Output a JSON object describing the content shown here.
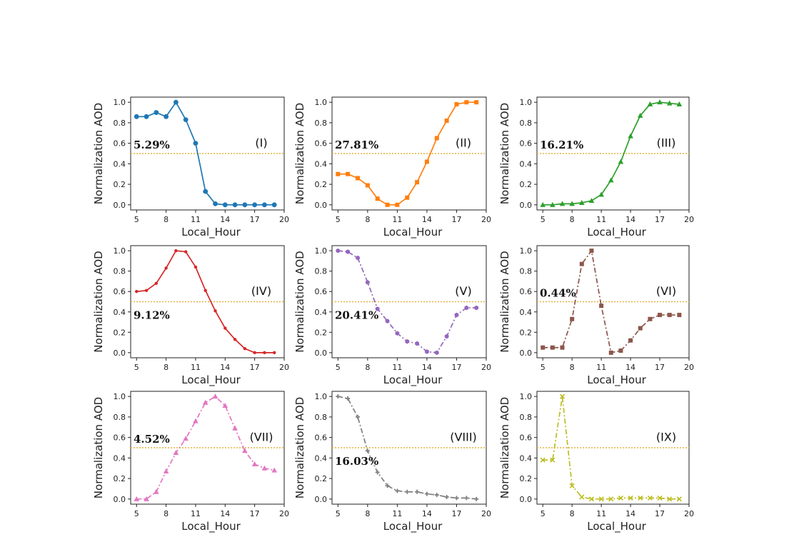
{
  "chart_data": [
    {
      "type": "line",
      "panel_label": "(I)",
      "percentage": "5.29%",
      "xlabel": "Local_Hour",
      "ylabel": "Normalization AOD",
      "x": [
        5,
        6,
        7,
        8,
        9,
        10,
        11,
        12,
        13,
        14,
        15,
        16,
        17,
        18,
        19
      ],
      "values": [
        0.86,
        0.86,
        0.9,
        0.86,
        1.0,
        0.83,
        0.6,
        0.13,
        0.01,
        0.0,
        0.0,
        0.0,
        0.0,
        0.0,
        0.0
      ],
      "color": "#1f77b4",
      "marker": "circle",
      "dash": "solid",
      "pct_pos": "upper-left"
    },
    {
      "type": "line",
      "panel_label": "(II)",
      "percentage": "27.81%",
      "xlabel": "Local_Hour",
      "ylabel": "Normalization AOD",
      "x": [
        5,
        6,
        7,
        8,
        9,
        10,
        11,
        12,
        13,
        14,
        15,
        16,
        17,
        18,
        19
      ],
      "values": [
        0.3,
        0.3,
        0.26,
        0.19,
        0.06,
        0.0,
        0.0,
        0.07,
        0.22,
        0.42,
        0.65,
        0.82,
        0.98,
        1.0,
        1.0
      ],
      "color": "#ff7f0e",
      "marker": "square",
      "dash": "solid",
      "pct_pos": "upper-left"
    },
    {
      "type": "line",
      "panel_label": "(III)",
      "percentage": "16.21%",
      "xlabel": "Local_Hour",
      "ylabel": "Normalization AOD",
      "x": [
        5,
        6,
        7,
        8,
        9,
        10,
        11,
        12,
        13,
        14,
        15,
        16,
        17,
        18,
        19
      ],
      "values": [
        0.0,
        0.0,
        0.01,
        0.01,
        0.02,
        0.04,
        0.1,
        0.24,
        0.42,
        0.67,
        0.87,
        0.98,
        1.0,
        0.99,
        0.98
      ],
      "color": "#2ca02c",
      "marker": "triangle",
      "dash": "solid",
      "pct_pos": "upper-left"
    },
    {
      "type": "line",
      "panel_label": "(IV)",
      "percentage": "9.12%",
      "xlabel": "Local_Hour",
      "ylabel": "Normalization AOD",
      "x": [
        5,
        6,
        7,
        8,
        9,
        10,
        11,
        12,
        13,
        14,
        15,
        16,
        17,
        18,
        19
      ],
      "values": [
        0.6,
        0.61,
        0.68,
        0.83,
        1.0,
        0.99,
        0.84,
        0.61,
        0.41,
        0.24,
        0.13,
        0.04,
        0.0,
        0.0,
        0.0
      ],
      "color": "#d62728",
      "marker": "dot",
      "dash": "solid",
      "pct_pos": "lower-left"
    },
    {
      "type": "line",
      "panel_label": "(V)",
      "percentage": "20.41%",
      "xlabel": "Local_Hour",
      "ylabel": "Normalization AOD",
      "x": [
        5,
        6,
        7,
        8,
        9,
        10,
        11,
        12,
        13,
        14,
        15,
        16,
        17,
        18,
        19
      ],
      "values": [
        1.0,
        0.99,
        0.93,
        0.69,
        0.43,
        0.31,
        0.19,
        0.11,
        0.09,
        0.01,
        0.0,
        0.16,
        0.37,
        0.44,
        0.44
      ],
      "color": "#9467bd",
      "marker": "hexagon",
      "dash": "dashdot",
      "pct_pos": "lower-left"
    },
    {
      "type": "line",
      "panel_label": "(VI)",
      "percentage": "0.44%",
      "xlabel": "Local_Hour",
      "ylabel": "Normalization AOD",
      "x": [
        5,
        6,
        7,
        8,
        9,
        10,
        11,
        12,
        13,
        14,
        15,
        16,
        17,
        18,
        19
      ],
      "values": [
        0.05,
        0.05,
        0.05,
        0.33,
        0.87,
        1.0,
        0.46,
        0.0,
        0.02,
        0.12,
        0.24,
        0.33,
        0.37,
        0.37,
        0.37
      ],
      "color": "#8c564b",
      "marker": "square",
      "dash": "dashdot",
      "pct_pos": "upper-left"
    },
    {
      "type": "line",
      "panel_label": "(VII)",
      "percentage": "4.52%",
      "xlabel": "Local_Hour",
      "ylabel": "Normalization AOD",
      "x": [
        5,
        6,
        7,
        8,
        9,
        10,
        11,
        12,
        13,
        14,
        15,
        16,
        17,
        18,
        19
      ],
      "values": [
        0.0,
        0.0,
        0.07,
        0.27,
        0.45,
        0.59,
        0.76,
        0.94,
        1.0,
        0.91,
        0.69,
        0.47,
        0.34,
        0.3,
        0.28
      ],
      "color": "#e377c2",
      "marker": "triangle",
      "dash": "dashdot",
      "pct_pos": "upper-left"
    },
    {
      "type": "line",
      "panel_label": "(VIII)",
      "percentage": "16.03%",
      "xlabel": "Local_Hour",
      "ylabel": "Normalization AOD",
      "x": [
        5,
        6,
        7,
        8,
        9,
        10,
        11,
        12,
        13,
        14,
        15,
        16,
        17,
        18,
        19
      ],
      "values": [
        1.0,
        0.98,
        0.8,
        0.47,
        0.26,
        0.13,
        0.08,
        0.07,
        0.07,
        0.05,
        0.04,
        0.02,
        0.01,
        0.01,
        0.0
      ],
      "color": "#7f7f7f",
      "marker": "plus",
      "dash": "dashdot",
      "pct_pos": "lower-left"
    },
    {
      "type": "line",
      "panel_label": "(IX)",
      "percentage": "",
      "xlabel": "Local_Hour",
      "ylabel": "Normalization AOD",
      "x": [
        5,
        6,
        7,
        8,
        9,
        10,
        11,
        12,
        13,
        14,
        15,
        16,
        17,
        18,
        19
      ],
      "values": [
        0.38,
        0.38,
        1.0,
        0.13,
        0.02,
        0.0,
        0.0,
        0.0,
        0.01,
        0.01,
        0.01,
        0.01,
        0.01,
        0.0,
        0.0
      ],
      "color": "#bcbd22",
      "marker": "x",
      "dash": "dashdot",
      "pct_pos": "none"
    }
  ],
  "shared": {
    "x_ticks": [
      5,
      8,
      11,
      14,
      17,
      20
    ],
    "y_ticks": [
      "0.0",
      "0.2",
      "0.4",
      "0.6",
      "0.8",
      "1.0"
    ],
    "xlim": [
      4.4,
      20.0
    ],
    "ylim": [
      -0.05,
      1.05
    ],
    "threshold": 0.5,
    "threshold_color": "#e3b23c",
    "grid": false
  }
}
